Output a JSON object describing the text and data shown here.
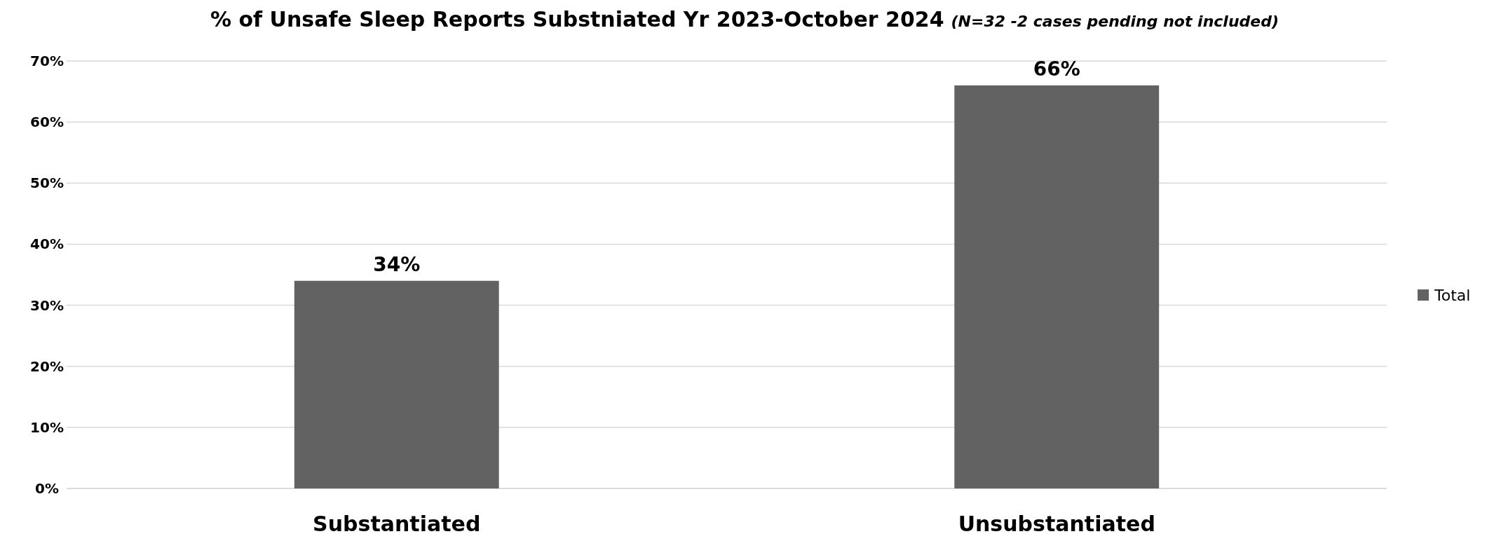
{
  "chart_data": {
    "type": "bar",
    "title": "% of Unsafe Sleep Reports Substniated Yr 2023-October 2024",
    "subtitle": "(N=32 -2 cases pending not included)",
    "categories": [
      "Substantiated",
      "Unsubstantiated"
    ],
    "series": [
      {
        "name": "Total",
        "color": "#626262",
        "values": [
          34,
          66
        ]
      }
    ],
    "ylim": [
      0,
      70
    ],
    "yticks": [
      {
        "value": 0,
        "label": "0%"
      },
      {
        "value": 10,
        "label": "10%"
      },
      {
        "value": 20,
        "label": "20%"
      },
      {
        "value": 30,
        "label": "30%"
      },
      {
        "value": 40,
        "label": "40%"
      },
      {
        "value": 50,
        "label": "50%"
      },
      {
        "value": 60,
        "label": "60%"
      },
      {
        "value": 70,
        "label": "70%"
      }
    ],
    "value_labels": [
      "34%",
      "66%"
    ],
    "grid": "y",
    "legend": "right"
  }
}
